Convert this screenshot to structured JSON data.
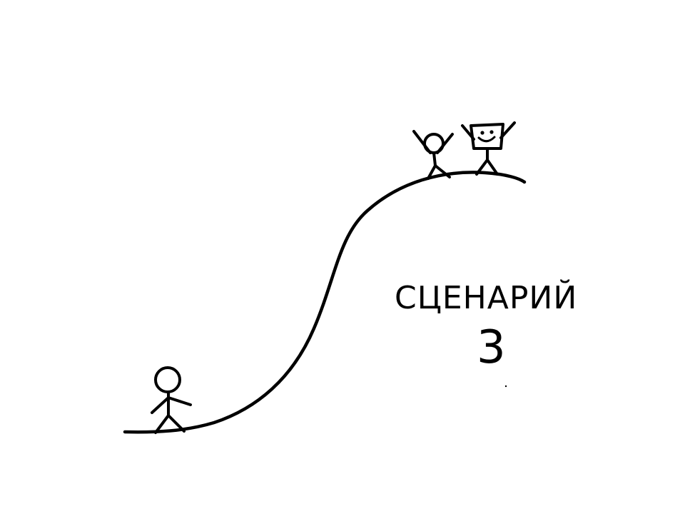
{
  "sketch": {
    "title": "СЦЕНАРИЙ",
    "number": "3"
  },
  "colors": {
    "ink": "#000000",
    "background": "#ffffff"
  }
}
